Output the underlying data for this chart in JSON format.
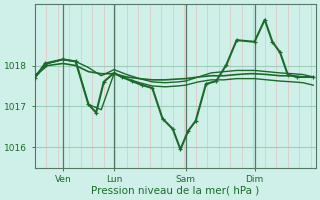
{
  "background_color": "#cff0e8",
  "grid_color_h": "#a0ccbe",
  "grid_color_v_minor": "#e8b8b8",
  "grid_color_v_major": "#557766",
  "line_color": "#1a6b2a",
  "xlabel": "Pression niveau de la mer( hPa )",
  "xlabel_color": "#1a6b2a",
  "tick_color": "#1a6b2a",
  "spine_color": "#557766",
  "ylim": [
    1015.5,
    1019.5
  ],
  "yticks": [
    1016,
    1017,
    1018
  ],
  "ytick_fontsize": 6.5,
  "xtick_fontsize": 6.5,
  "xlabel_fontsize": 7.5,
  "day_labels": [
    "Ven",
    "Lun",
    "Sam",
    "Dim"
  ],
  "day_positions": [
    22,
    62,
    118,
    172
  ],
  "xlim": [
    0,
    220
  ],
  "vlines_major": [
    22,
    62,
    118,
    172
  ],
  "vlines_minor_step": 9,
  "series": [
    {
      "x": [
        0,
        10,
        22,
        32,
        42,
        52,
        62,
        72,
        82,
        92,
        102,
        112,
        118,
        128,
        138,
        148,
        158,
        168,
        172,
        182,
        192,
        202,
        210,
        218
      ],
      "y": [
        1017.75,
        1018.0,
        1018.05,
        1018.0,
        1017.85,
        1017.8,
        1017.8,
        1017.72,
        1017.68,
        1017.65,
        1017.65,
        1017.67,
        1017.68,
        1017.72,
        1017.75,
        1017.75,
        1017.78,
        1017.8,
        1017.8,
        1017.78,
        1017.75,
        1017.75,
        1017.72,
        1017.72
      ],
      "lw": 1.2,
      "with_markers": false
    },
    {
      "x": [
        0,
        10,
        22,
        32,
        42,
        52,
        62,
        72,
        82,
        92,
        102,
        112,
        118,
        128,
        138,
        148,
        158,
        168,
        172,
        182,
        192,
        202,
        210,
        218
      ],
      "y": [
        1017.75,
        1018.05,
        1018.15,
        1018.1,
        1017.95,
        1017.75,
        1017.9,
        1017.78,
        1017.68,
        1017.6,
        1017.58,
        1017.6,
        1017.62,
        1017.72,
        1017.82,
        1017.85,
        1017.88,
        1017.88,
        1017.88,
        1017.85,
        1017.82,
        1017.8,
        1017.78,
        1017.72
      ],
      "lw": 1.0,
      "with_markers": false
    },
    {
      "x": [
        0,
        10,
        22,
        32,
        42,
        52,
        62,
        72,
        82,
        92,
        102,
        112,
        118,
        128,
        138,
        148,
        158,
        168,
        172,
        182,
        192,
        202,
        210,
        218
      ],
      "y": [
        1017.7,
        1018.05,
        1018.15,
        1018.1,
        1017.05,
        1016.92,
        1017.8,
        1017.68,
        1017.58,
        1017.5,
        1017.48,
        1017.5,
        1017.52,
        1017.6,
        1017.65,
        1017.65,
        1017.68,
        1017.68,
        1017.68,
        1017.65,
        1017.62,
        1017.6,
        1017.58,
        1017.52
      ],
      "lw": 1.0,
      "with_markers": false
    },
    {
      "x": [
        0,
        8,
        22,
        32,
        42,
        48,
        54,
        62,
        68,
        76,
        84,
        92,
        100,
        108,
        114,
        120,
        126,
        134,
        142,
        150,
        158,
        172,
        180,
        186,
        192,
        198,
        205,
        218
      ],
      "y": [
        1017.7,
        1018.05,
        1018.15,
        1018.1,
        1017.05,
        1016.85,
        1017.6,
        1017.82,
        1017.72,
        1017.62,
        1017.52,
        1017.45,
        1016.7,
        1016.45,
        1015.95,
        1016.4,
        1016.65,
        1017.55,
        1017.62,
        1018.02,
        1018.62,
        1018.58,
        1019.12,
        1018.58,
        1018.32,
        1017.78,
        1017.72,
        1017.72
      ],
      "lw": 1.5,
      "with_markers": true
    }
  ]
}
